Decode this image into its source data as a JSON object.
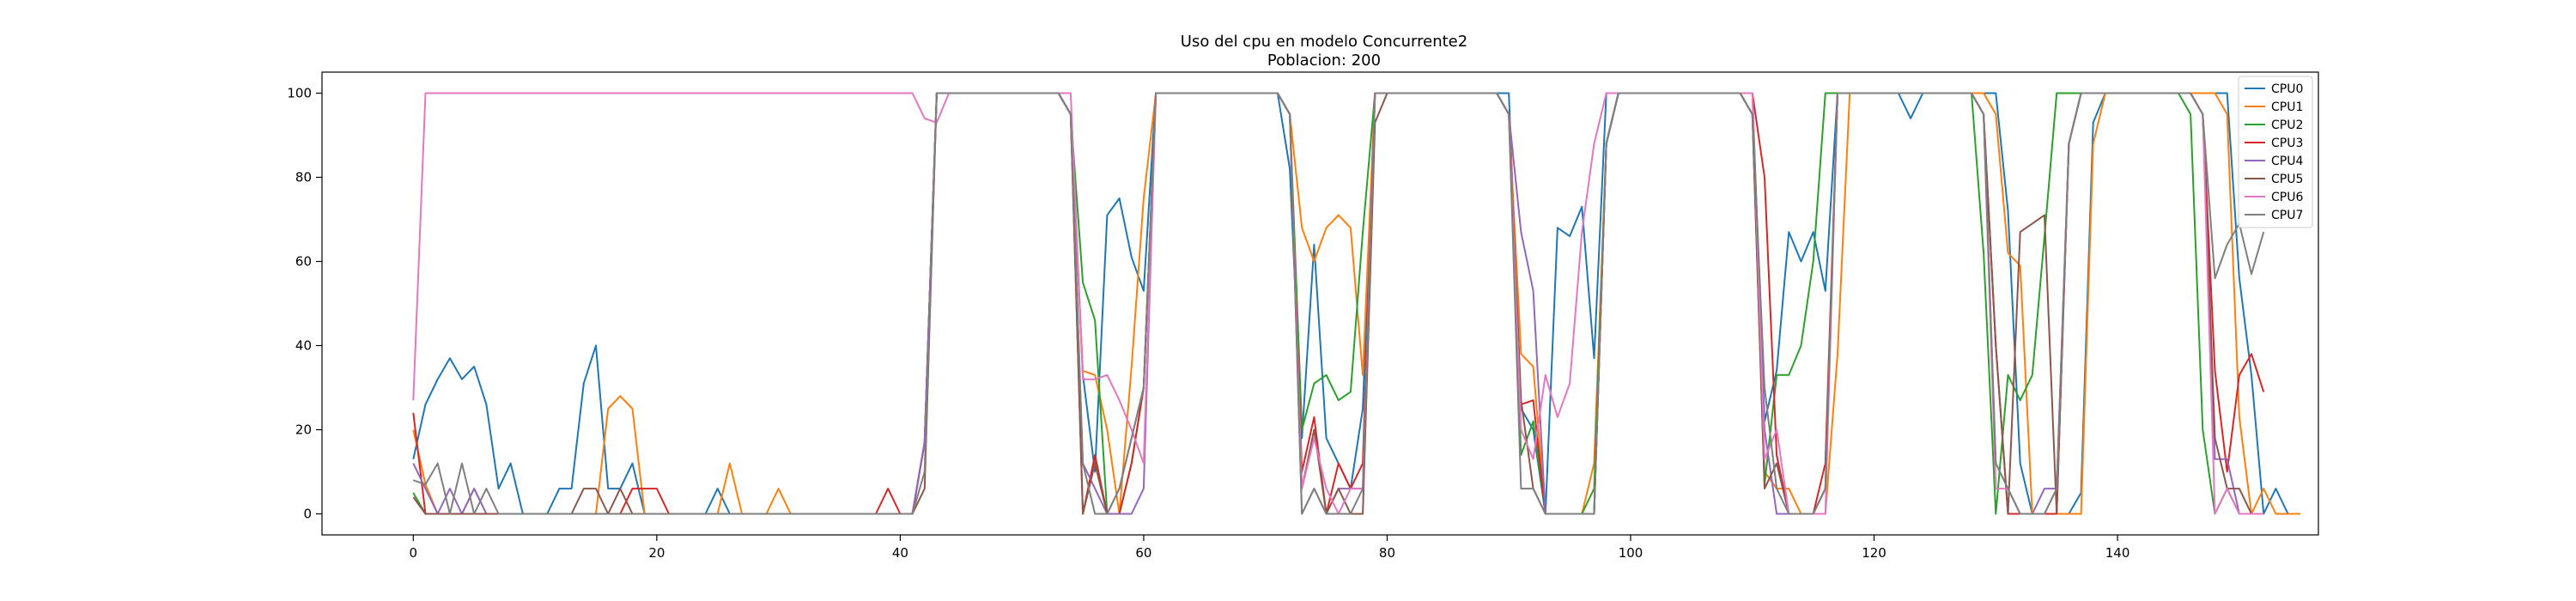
{
  "chart_data": {
    "type": "line",
    "title": "Uso del cpu en modelo Concurrente2",
    "subtitle": "Poblacion: 200",
    "xlabel": "",
    "ylabel": "",
    "xlim": [
      -7.5,
      156.5
    ],
    "ylim": [
      -5,
      105
    ],
    "xticks": [
      0,
      20,
      40,
      60,
      80,
      100,
      120,
      140
    ],
    "yticks": [
      0,
      20,
      40,
      60,
      80,
      100
    ],
    "legend_position": "top-right",
    "series": [
      {
        "name": "CPU0",
        "color": "#1f77b4",
        "values": [
          13,
          26,
          32,
          37,
          32,
          35,
          26,
          6,
          12,
          0,
          0,
          0,
          6,
          6,
          31,
          40,
          6,
          6,
          12,
          0,
          0,
          0,
          0,
          0,
          0,
          6,
          0,
          0,
          0,
          0,
          0,
          0,
          0,
          0,
          0,
          0,
          0,
          0,
          0,
          0,
          0,
          0,
          17,
          100,
          100,
          100,
          100,
          100,
          100,
          100,
          100,
          100,
          100,
          100,
          95,
          33,
          10,
          71,
          75,
          61,
          53,
          100,
          100,
          100,
          100,
          100,
          100,
          100,
          100,
          100,
          100,
          100,
          82,
          18,
          64,
          18,
          12,
          6,
          25,
          100,
          100,
          100,
          100,
          100,
          100,
          100,
          100,
          100,
          100,
          100,
          100,
          25,
          20,
          0,
          68,
          66,
          73,
          37,
          100,
          100,
          100,
          100,
          100,
          100,
          100,
          100,
          100,
          100,
          100,
          100,
          100,
          22,
          34,
          67,
          60,
          67,
          53,
          100,
          100,
          100,
          100,
          100,
          100,
          94,
          100,
          100,
          100,
          100,
          100,
          100,
          100,
          72,
          12,
          0,
          0,
          0,
          0,
          5,
          93,
          100,
          100,
          100,
          100,
          100,
          100,
          100,
          100,
          100,
          100,
          100,
          56,
          33,
          0,
          6,
          0,
          0
        ]
      },
      {
        "name": "CPU1",
        "color": "#ff7f0e",
        "values": [
          20,
          7,
          0,
          0,
          0,
          6,
          0,
          0,
          0,
          0,
          0,
          0,
          0,
          0,
          0,
          0,
          25,
          28,
          25,
          0,
          0,
          0,
          0,
          0,
          0,
          0,
          12,
          0,
          0,
          0,
          6,
          0,
          0,
          0,
          0,
          0,
          0,
          0,
          0,
          0,
          0,
          0,
          17,
          100,
          100,
          100,
          100,
          100,
          100,
          100,
          100,
          100,
          100,
          100,
          95,
          34,
          33,
          20,
          0,
          35,
          75,
          100,
          100,
          100,
          100,
          100,
          100,
          100,
          100,
          100,
          100,
          100,
          95,
          68,
          60,
          68,
          71,
          68,
          33,
          100,
          100,
          100,
          100,
          100,
          100,
          100,
          100,
          100,
          100,
          100,
          95,
          38,
          35,
          0,
          0,
          0,
          0,
          12,
          88,
          100,
          100,
          100,
          100,
          100,
          100,
          100,
          100,
          100,
          100,
          100,
          95,
          10,
          6,
          6,
          0,
          0,
          0,
          38,
          100,
          100,
          100,
          100,
          100,
          100,
          100,
          100,
          100,
          100,
          100,
          100,
          95,
          62,
          59,
          0,
          0,
          0,
          0,
          0,
          88,
          100,
          100,
          100,
          100,
          100,
          100,
          100,
          100,
          100,
          100,
          95,
          23,
          0,
          6,
          0,
          0,
          0
        ]
      },
      {
        "name": "CPU2",
        "color": "#2ca02c",
        "values": [
          5,
          0,
          0,
          0,
          0,
          0,
          0,
          0,
          0,
          0,
          0,
          0,
          0,
          0,
          0,
          0,
          0,
          0,
          0,
          0,
          0,
          0,
          0,
          0,
          0,
          0,
          0,
          0,
          0,
          0,
          0,
          0,
          0,
          0,
          0,
          0,
          0,
          0,
          0,
          0,
          0,
          0,
          17,
          100,
          100,
          100,
          100,
          100,
          100,
          100,
          100,
          100,
          100,
          100,
          95,
          55,
          46,
          0,
          0,
          12,
          30,
          100,
          100,
          100,
          100,
          100,
          100,
          100,
          100,
          100,
          100,
          100,
          95,
          20,
          31,
          33,
          27,
          29,
          67,
          100,
          100,
          100,
          100,
          100,
          100,
          100,
          100,
          100,
          100,
          100,
          95,
          14,
          22,
          0,
          0,
          0,
          0,
          6,
          88,
          100,
          100,
          100,
          100,
          100,
          100,
          100,
          100,
          100,
          100,
          100,
          95,
          7,
          33,
          33,
          40,
          60,
          100,
          100,
          100,
          100,
          100,
          100,
          100,
          100,
          100,
          100,
          100,
          100,
          100,
          62,
          0,
          33,
          27,
          33,
          66,
          100,
          100,
          100,
          100,
          100,
          100,
          100,
          100,
          100,
          100,
          100,
          95,
          20,
          0,
          6,
          0,
          0
        ]
      },
      {
        "name": "CPU3",
        "color": "#d62728",
        "values": [
          24,
          0,
          0,
          0,
          0,
          0,
          0,
          0,
          0,
          0,
          0,
          0,
          0,
          0,
          0,
          0,
          0,
          0,
          6,
          6,
          6,
          0,
          0,
          0,
          0,
          0,
          0,
          0,
          0,
          0,
          0,
          0,
          0,
          0,
          0,
          0,
          0,
          0,
          0,
          6,
          0,
          0,
          17,
          100,
          100,
          100,
          100,
          100,
          100,
          100,
          100,
          100,
          100,
          100,
          95,
          0,
          14,
          0,
          0,
          12,
          30,
          100,
          100,
          100,
          100,
          100,
          100,
          100,
          100,
          100,
          100,
          100,
          95,
          10,
          23,
          0,
          12,
          6,
          12,
          100,
          100,
          100,
          100,
          100,
          100,
          100,
          100,
          100,
          100,
          100,
          95,
          26,
          27,
          0,
          0,
          0,
          0,
          0,
          88,
          100,
          100,
          100,
          100,
          100,
          100,
          100,
          100,
          100,
          100,
          100,
          100,
          80,
          14,
          0,
          0,
          0,
          12,
          100,
          100,
          100,
          100,
          100,
          100,
          100,
          100,
          100,
          100,
          100,
          100,
          95,
          40,
          0,
          0,
          0,
          0,
          0,
          88,
          100,
          100,
          100,
          100,
          100,
          100,
          100,
          100,
          100,
          100,
          95,
          34,
          10,
          33,
          38,
          29
        ]
      },
      {
        "name": "CPU4",
        "color": "#9467bd",
        "values": [
          12,
          6,
          0,
          6,
          0,
          6,
          0,
          0,
          0,
          0,
          0,
          0,
          0,
          0,
          0,
          0,
          0,
          0,
          0,
          0,
          0,
          0,
          0,
          0,
          0,
          0,
          0,
          0,
          0,
          0,
          0,
          0,
          0,
          0,
          0,
          0,
          0,
          0,
          0,
          0,
          0,
          0,
          17,
          100,
          100,
          100,
          100,
          100,
          100,
          100,
          100,
          100,
          100,
          100,
          95,
          12,
          6,
          0,
          0,
          0,
          6,
          100,
          100,
          100,
          100,
          100,
          100,
          100,
          100,
          100,
          100,
          100,
          95,
          0,
          6,
          0,
          6,
          6,
          6,
          100,
          100,
          100,
          100,
          100,
          100,
          100,
          100,
          100,
          100,
          100,
          95,
          67,
          53,
          0,
          0,
          0,
          0,
          0,
          88,
          100,
          100,
          100,
          100,
          100,
          100,
          100,
          100,
          100,
          100,
          100,
          95,
          20,
          0,
          0,
          0,
          0,
          6,
          100,
          100,
          100,
          100,
          100,
          100,
          100,
          100,
          100,
          100,
          100,
          100,
          95,
          12,
          6,
          0,
          0,
          6,
          6,
          88,
          100,
          100,
          100,
          100,
          100,
          100,
          100,
          100,
          100,
          100,
          95,
          13,
          13,
          0,
          0,
          0
        ]
      },
      {
        "name": "CPU5",
        "color": "#8c564b",
        "values": [
          4,
          0,
          0,
          0,
          0,
          0,
          0,
          0,
          0,
          0,
          0,
          0,
          0,
          0,
          6,
          6,
          0,
          6,
          0,
          0,
          0,
          0,
          0,
          0,
          0,
          0,
          0,
          0,
          0,
          0,
          0,
          0,
          0,
          0,
          0,
          0,
          0,
          0,
          0,
          0,
          0,
          0,
          6,
          100,
          100,
          100,
          100,
          100,
          100,
          100,
          100,
          100,
          100,
          100,
          95,
          0,
          12,
          0,
          6,
          18,
          30,
          100,
          100,
          100,
          100,
          100,
          100,
          100,
          100,
          100,
          100,
          100,
          95,
          6,
          20,
          0,
          6,
          0,
          0,
          93,
          100,
          100,
          100,
          100,
          100,
          100,
          100,
          100,
          100,
          100,
          95,
          27,
          6,
          0,
          0,
          0,
          0,
          0,
          88,
          100,
          100,
          100,
          100,
          100,
          100,
          100,
          100,
          100,
          100,
          100,
          95,
          6,
          12,
          0,
          0,
          0,
          6,
          100,
          100,
          100,
          100,
          100,
          100,
          100,
          100,
          100,
          100,
          100,
          100,
          95,
          40,
          0,
          67,
          69,
          71,
          0,
          88,
          100,
          100,
          100,
          100,
          100,
          100,
          100,
          100,
          100,
          100,
          95,
          18,
          6,
          6,
          0,
          0
        ]
      },
      {
        "name": "CPU6",
        "color": "#e377c2",
        "values": [
          27,
          100,
          100,
          100,
          100,
          100,
          100,
          100,
          100,
          100,
          100,
          100,
          100,
          100,
          100,
          100,
          100,
          100,
          100,
          100,
          100,
          100,
          100,
          100,
          100,
          100,
          100,
          100,
          100,
          100,
          100,
          100,
          100,
          100,
          100,
          100,
          100,
          100,
          100,
          100,
          100,
          100,
          94,
          93,
          100,
          100,
          100,
          100,
          100,
          100,
          100,
          100,
          100,
          100,
          100,
          32,
          32,
          33,
          27,
          20,
          12,
          100,
          100,
          100,
          100,
          100,
          100,
          100,
          100,
          100,
          100,
          100,
          95,
          6,
          18,
          6,
          0,
          6,
          6,
          100,
          100,
          100,
          100,
          100,
          100,
          100,
          100,
          100,
          100,
          100,
          95,
          20,
          13,
          33,
          23,
          31,
          67,
          88,
          100,
          100,
          100,
          100,
          100,
          100,
          100,
          100,
          100,
          100,
          100,
          100,
          100,
          13,
          20,
          0,
          0,
          0,
          0,
          100,
          100,
          100,
          100,
          100,
          100,
          100,
          100,
          100,
          100,
          100,
          100,
          95,
          6,
          6,
          0,
          0,
          0,
          6,
          88,
          100,
          100,
          100,
          100,
          100,
          100,
          100,
          100,
          100,
          100,
          95,
          0,
          6,
          0,
          0,
          0
        ]
      },
      {
        "name": "CPU7",
        "color": "#7f7f7f",
        "values": [
          8,
          7,
          12,
          0,
          12,
          0,
          6,
          0,
          0,
          0,
          0,
          0,
          0,
          0,
          0,
          0,
          0,
          0,
          0,
          0,
          0,
          0,
          0,
          0,
          0,
          0,
          0,
          0,
          0,
          0,
          0,
          0,
          0,
          0,
          0,
          0,
          0,
          0,
          0,
          0,
          0,
          0,
          10,
          100,
          100,
          100,
          100,
          100,
          100,
          100,
          100,
          100,
          100,
          100,
          95,
          12,
          0,
          0,
          6,
          18,
          30,
          100,
          100,
          100,
          100,
          100,
          100,
          100,
          100,
          100,
          100,
          100,
          95,
          0,
          6,
          0,
          0,
          0,
          6,
          100,
          100,
          100,
          100,
          100,
          100,
          100,
          100,
          100,
          100,
          100,
          95,
          6,
          6,
          0,
          0,
          0,
          0,
          0,
          88,
          100,
          100,
          100,
          100,
          100,
          100,
          100,
          100,
          100,
          100,
          100,
          95,
          30,
          6,
          0,
          0,
          0,
          6,
          100,
          100,
          100,
          100,
          100,
          100,
          100,
          100,
          100,
          100,
          100,
          100,
          95,
          12,
          6,
          0,
          0,
          0,
          6,
          88,
          100,
          100,
          100,
          100,
          100,
          100,
          100,
          100,
          100,
          100,
          95,
          56,
          64,
          69,
          57,
          67
        ]
      }
    ]
  }
}
